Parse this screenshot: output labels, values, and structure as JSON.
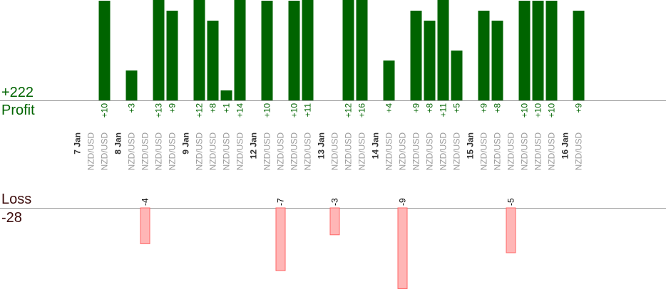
{
  "colors": {
    "profit": "#006400",
    "loss_fill": "#ffb6b6",
    "loss_stroke": "#ff6666",
    "profit_text": "#006400",
    "loss_text": "#3b0a0a",
    "axis": "#999999",
    "label": "#999999",
    "date": "#333333",
    "value_label": "#006400",
    "loss_value": "#000000"
  },
  "summary": {
    "profit_total": "+222",
    "profit_label": "Profit",
    "loss_label": "Loss",
    "loss_total": "-28"
  },
  "chart_data": {
    "type": "bar",
    "title": "",
    "xlabel": "",
    "ylabel": "",
    "profit_ylim": [
      0,
      10
    ],
    "loss_ylim": [
      -9,
      0
    ],
    "columns": [
      {
        "label": "7 Jan",
        "kind": "date"
      },
      {
        "label": "NZD/USD",
        "kind": "pair",
        "profit": null,
        "loss": null
      },
      {
        "label": "NZD/USD",
        "kind": "pair",
        "profit": 10,
        "profit_label": "+10",
        "loss": null
      },
      {
        "label": "8 Jan",
        "kind": "date"
      },
      {
        "label": "NZD/USD",
        "kind": "pair",
        "profit": 3,
        "profit_label": "+3",
        "loss": null
      },
      {
        "label": "NZD/USD",
        "kind": "pair",
        "profit": null,
        "loss": -4,
        "loss_label": "-4"
      },
      {
        "label": "NZD/USD",
        "kind": "pair",
        "profit": 13,
        "profit_label": "+13",
        "loss": null
      },
      {
        "label": "NZD/USD",
        "kind": "pair",
        "profit": 9,
        "profit_label": "+9",
        "loss": null
      },
      {
        "label": "9 Jan",
        "kind": "date"
      },
      {
        "label": "NZD/USD",
        "kind": "pair",
        "profit": 12,
        "profit_label": "+12",
        "loss": null
      },
      {
        "label": "NZD/USD",
        "kind": "pair",
        "profit": 8,
        "profit_label": "+8",
        "loss": null
      },
      {
        "label": "NZD/USD",
        "kind": "pair",
        "profit": 1,
        "profit_label": "+1",
        "loss": null
      },
      {
        "label": "NZD/USD",
        "kind": "pair",
        "profit": 14,
        "profit_label": "+14",
        "loss": null
      },
      {
        "label": "12 Jan",
        "kind": "date"
      },
      {
        "label": "NZD/USD",
        "kind": "pair",
        "profit": 10,
        "profit_label": "+10",
        "loss": null
      },
      {
        "label": "NZD/USD",
        "kind": "pair",
        "profit": null,
        "loss": -7,
        "loss_label": "-7"
      },
      {
        "label": "NZD/USD",
        "kind": "pair",
        "profit": 10,
        "profit_label": "+10",
        "loss": null
      },
      {
        "label": "NZD/USD",
        "kind": "pair",
        "profit": 11,
        "profit_label": "+11",
        "loss": null
      },
      {
        "label": "13 Jan",
        "kind": "date"
      },
      {
        "label": "NZD/USD",
        "kind": "pair",
        "profit": null,
        "loss": -3,
        "loss_label": "-3"
      },
      {
        "label": "NZD/USD",
        "kind": "pair",
        "profit": 12,
        "profit_label": "+12",
        "loss": null
      },
      {
        "label": "NZD/USD",
        "kind": "pair",
        "profit": 16,
        "profit_label": "+16",
        "loss": null
      },
      {
        "label": "14 Jan",
        "kind": "date"
      },
      {
        "label": "NZD/USD",
        "kind": "pair",
        "profit": 4,
        "profit_label": "+4",
        "loss": null
      },
      {
        "label": "NZD/USD",
        "kind": "pair",
        "profit": null,
        "loss": -9,
        "loss_label": "-9"
      },
      {
        "label": "NZD/USD",
        "kind": "pair",
        "profit": 9,
        "profit_label": "+9",
        "loss": null
      },
      {
        "label": "NZD/USD",
        "kind": "pair",
        "profit": 8,
        "profit_label": "+8",
        "loss": null
      },
      {
        "label": "NZD/USD",
        "kind": "pair",
        "profit": 11,
        "profit_label": "+11",
        "loss": null
      },
      {
        "label": "NZD/USD",
        "kind": "pair",
        "profit": 5,
        "profit_label": "+5",
        "loss": null
      },
      {
        "label": "15 Jan",
        "kind": "date"
      },
      {
        "label": "NZD/USD",
        "kind": "pair",
        "profit": 9,
        "profit_label": "+9",
        "loss": null
      },
      {
        "label": "NZD/USD",
        "kind": "pair",
        "profit": 8,
        "profit_label": "+8",
        "loss": null
      },
      {
        "label": "NZD/USD",
        "kind": "pair",
        "profit": null,
        "loss": -5,
        "loss_label": "-5"
      },
      {
        "label": "NZD/USD",
        "kind": "pair",
        "profit": 10,
        "profit_label": "+10",
        "loss": null
      },
      {
        "label": "NZD/USD",
        "kind": "pair",
        "profit": 10,
        "profit_label": "+10",
        "loss": null
      },
      {
        "label": "NZD/USD",
        "kind": "pair",
        "profit": 10,
        "profit_label": "+10",
        "loss": null
      },
      {
        "label": "16 Jan",
        "kind": "date"
      },
      {
        "label": "NZD/USD",
        "kind": "pair",
        "profit": 9,
        "profit_label": "+9",
        "loss": null
      }
    ]
  }
}
